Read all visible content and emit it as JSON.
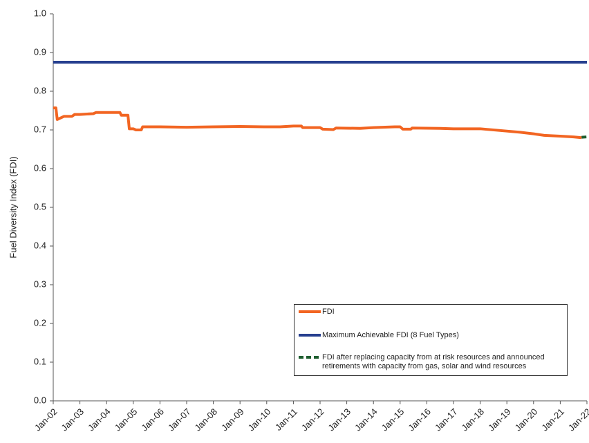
{
  "chart_data": {
    "type": "line",
    "y_label": "Fuel Diversity Index (FDI)",
    "xlim": [
      2002,
      2022
    ],
    "ylim": [
      0,
      1
    ],
    "xticks": [
      {
        "value": 2002,
        "label": "Jan-02"
      },
      {
        "value": 2003,
        "label": "Jan-03"
      },
      {
        "value": 2004,
        "label": "Jan-04"
      },
      {
        "value": 2005,
        "label": "Jan-05"
      },
      {
        "value": 2006,
        "label": "Jan-06"
      },
      {
        "value": 2007,
        "label": "Jan-07"
      },
      {
        "value": 2008,
        "label": "Jan-08"
      },
      {
        "value": 2009,
        "label": "Jan-09"
      },
      {
        "value": 2010,
        "label": "Jan-10"
      },
      {
        "value": 2011,
        "label": "Jan-11"
      },
      {
        "value": 2012,
        "label": "Jan-12"
      },
      {
        "value": 2013,
        "label": "Jan-13"
      },
      {
        "value": 2014,
        "label": "Jan-14"
      },
      {
        "value": 2015,
        "label": "Jan-15"
      },
      {
        "value": 2016,
        "label": "Jan-16"
      },
      {
        "value": 2017,
        "label": "Jan-17"
      },
      {
        "value": 2018,
        "label": "Jan-18"
      },
      {
        "value": 2019,
        "label": "Jan-19"
      },
      {
        "value": 2020,
        "label": "Jan-20"
      },
      {
        "value": 2021,
        "label": "Jan-21"
      },
      {
        "value": 2022,
        "label": "Jan-22"
      }
    ],
    "yticks": [
      {
        "value": 0,
        "label": "0.0"
      },
      {
        "value": 0.1,
        "label": "0.1"
      },
      {
        "value": 0.2,
        "label": "0.2"
      },
      {
        "value": 0.3,
        "label": "0.3"
      },
      {
        "value": 0.4,
        "label": "0.4"
      },
      {
        "value": 0.5,
        "label": "0.5"
      },
      {
        "value": 0.6,
        "label": "0.6"
      },
      {
        "value": 0.7,
        "label": "0.7"
      },
      {
        "value": 0.8,
        "label": "0.8"
      },
      {
        "value": 0.9,
        "label": "0.9"
      },
      {
        "value": 1,
        "label": "1.0"
      }
    ],
    "series": [
      {
        "name": "FDI",
        "color": "#f26522",
        "dashed": false,
        "x": [
          2002.0,
          2002.1,
          2002.15,
          2002.4,
          2002.7,
          2002.8,
          2003.0,
          2003.5,
          2003.6,
          2004.5,
          2004.55,
          2004.8,
          2004.85,
          2005.0,
          2005.1,
          2005.3,
          2005.35,
          2006,
          2007,
          2008,
          2009,
          2010,
          2010.5,
          2011,
          2011.3,
          2011.35,
          2012,
          2012.1,
          2012.5,
          2012.6,
          2013.5,
          2014,
          2014.8,
          2015,
          2015.1,
          2015.4,
          2015.45,
          2016.5,
          2017,
          2018,
          2019,
          2019.5,
          2020,
          2020.4,
          2021,
          2021.5,
          2021.8
        ],
        "values": [
          0.757,
          0.757,
          0.727,
          0.735,
          0.735,
          0.74,
          0.74,
          0.742,
          0.745,
          0.745,
          0.738,
          0.738,
          0.703,
          0.703,
          0.7,
          0.7,
          0.708,
          0.708,
          0.707,
          0.708,
          0.709,
          0.708,
          0.708,
          0.71,
          0.71,
          0.706,
          0.706,
          0.702,
          0.701,
          0.705,
          0.704,
          0.706,
          0.708,
          0.708,
          0.702,
          0.702,
          0.705,
          0.704,
          0.703,
          0.703,
          0.697,
          0.694,
          0.69,
          0.686,
          0.684,
          0.682,
          0.68
        ]
      },
      {
        "name": "Maximum Achievable FDI (8 Fuel Types)",
        "color": "#263f8f",
        "dashed": false,
        "x": [
          2002,
          2022
        ],
        "values": [
          0.875,
          0.875
        ]
      },
      {
        "name": "FDI after replacing capacity from at risk resources and announced retirements with capacity from gas, solar and wind resources",
        "color": "#1e5e2f",
        "dashed": true,
        "x": [
          2021.8,
          2022
        ],
        "values": [
          0.681,
          0.682
        ]
      }
    ]
  }
}
